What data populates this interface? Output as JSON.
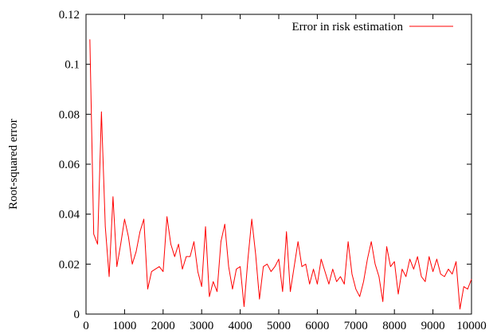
{
  "chart_data": {
    "type": "line",
    "title": "",
    "xlabel": "",
    "ylabel": "Root-squared error",
    "xlim": [
      0,
      10000
    ],
    "ylim": [
      0,
      0.12
    ],
    "xticks": [
      0,
      1000,
      2000,
      3000,
      4000,
      5000,
      6000,
      7000,
      8000,
      9000,
      10000
    ],
    "yticks": [
      0,
      0.02,
      0.04,
      0.06,
      0.08,
      0.1,
      0.12
    ],
    "xtick_labels": [
      "0",
      "1000",
      "2000",
      "3000",
      "4000",
      "5000",
      "6000",
      "7000",
      "8000",
      "9000",
      "10000"
    ],
    "ytick_labels": [
      "0",
      "0.02",
      "0.04",
      "0.06",
      "0.08",
      "0.1",
      "0.12"
    ],
    "grid": false,
    "legend_position": "top-right",
    "series": [
      {
        "name": "Error in risk estimation",
        "color": "#ff0000",
        "x": [
          100,
          200,
          300,
          400,
          500,
          600,
          700,
          800,
          900,
          1000,
          1100,
          1200,
          1300,
          1400,
          1500,
          1600,
          1700,
          1800,
          1900,
          2000,
          2100,
          2200,
          2300,
          2400,
          2500,
          2600,
          2700,
          2800,
          2900,
          3000,
          3100,
          3200,
          3300,
          3400,
          3500,
          3600,
          3700,
          3800,
          3900,
          4000,
          4100,
          4200,
          4300,
          4400,
          4500,
          4600,
          4700,
          4800,
          4900,
          5000,
          5100,
          5200,
          5300,
          5400,
          5500,
          5600,
          5700,
          5800,
          5900,
          6000,
          6100,
          6200,
          6300,
          6400,
          6500,
          6600,
          6700,
          6800,
          6900,
          7000,
          7100,
          7200,
          7300,
          7400,
          7500,
          7600,
          7700,
          7800,
          7900,
          8000,
          8100,
          8200,
          8300,
          8400,
          8500,
          8600,
          8700,
          8800,
          8900,
          9000,
          9100,
          9200,
          9300,
          9400,
          9500,
          9600,
          9700,
          9800,
          9900,
          10000
        ],
        "y": [
          0.11,
          0.032,
          0.028,
          0.081,
          0.035,
          0.015,
          0.047,
          0.019,
          0.028,
          0.038,
          0.031,
          0.02,
          0.025,
          0.033,
          0.038,
          0.01,
          0.017,
          0.018,
          0.019,
          0.017,
          0.039,
          0.028,
          0.023,
          0.028,
          0.018,
          0.023,
          0.023,
          0.029,
          0.017,
          0.011,
          0.035,
          0.007,
          0.013,
          0.009,
          0.029,
          0.036,
          0.019,
          0.01,
          0.018,
          0.019,
          0.003,
          0.022,
          0.038,
          0.024,
          0.006,
          0.019,
          0.02,
          0.017,
          0.019,
          0.022,
          0.009,
          0.033,
          0.009,
          0.019,
          0.029,
          0.019,
          0.02,
          0.012,
          0.018,
          0.012,
          0.022,
          0.017,
          0.012,
          0.018,
          0.013,
          0.015,
          0.012,
          0.029,
          0.016,
          0.01,
          0.007,
          0.013,
          0.022,
          0.029,
          0.02,
          0.015,
          0.005,
          0.027,
          0.019,
          0.021,
          0.008,
          0.018,
          0.015,
          0.022,
          0.018,
          0.023,
          0.015,
          0.013,
          0.023,
          0.017,
          0.022,
          0.016,
          0.015,
          0.018,
          0.016,
          0.021,
          0.002,
          0.011,
          0.01,
          0.014
        ]
      }
    ]
  }
}
